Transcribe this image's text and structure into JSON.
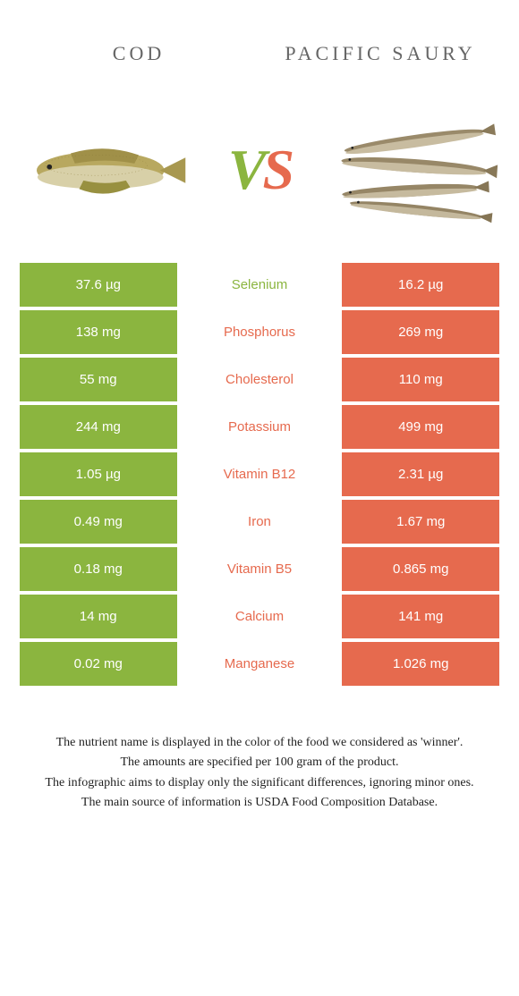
{
  "colors": {
    "left": "#8bb53f",
    "right": "#e66a4e",
    "background": "#ffffff"
  },
  "titles": {
    "left": "Cod",
    "right": "Pacific saury"
  },
  "vs": {
    "v": "V",
    "s": "S"
  },
  "rows": [
    {
      "left": "37.6 µg",
      "label": "Selenium",
      "right": "16.2 µg",
      "winner": "left"
    },
    {
      "left": "138 mg",
      "label": "Phosphorus",
      "right": "269 mg",
      "winner": "right"
    },
    {
      "left": "55 mg",
      "label": "Cholesterol",
      "right": "110 mg",
      "winner": "right"
    },
    {
      "left": "244 mg",
      "label": "Potassium",
      "right": "499 mg",
      "winner": "right"
    },
    {
      "left": "1.05 µg",
      "label": "Vitamin B12",
      "right": "2.31 µg",
      "winner": "right"
    },
    {
      "left": "0.49 mg",
      "label": "Iron",
      "right": "1.67 mg",
      "winner": "right"
    },
    {
      "left": "0.18 mg",
      "label": "Vitamin B5",
      "right": "0.865 mg",
      "winner": "right"
    },
    {
      "left": "14 mg",
      "label": "Calcium",
      "right": "141 mg",
      "winner": "right"
    },
    {
      "left": "0.02 mg",
      "label": "Manganese",
      "right": "1.026 mg",
      "winner": "right"
    }
  ],
  "footer": {
    "l1": "The nutrient name is displayed in the color of the food we considered as 'winner'.",
    "l2": "The amounts are specified per 100 gram of the product.",
    "l3": "The infographic aims to display only the significant differences, ignoring minor ones.",
    "l4": "The main source of information is USDA Food Composition Database."
  }
}
